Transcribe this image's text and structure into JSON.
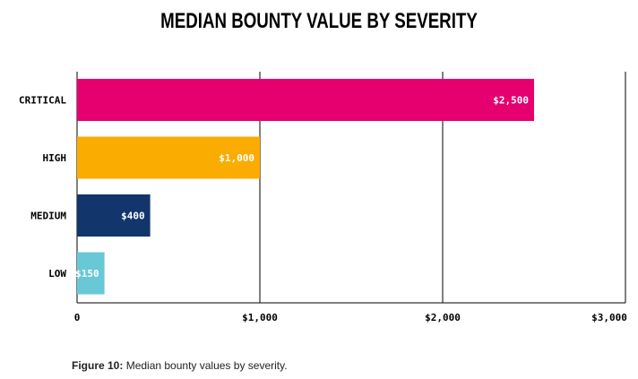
{
  "chart_data": {
    "type": "bar",
    "orientation": "horizontal",
    "title": "MEDIAN BOUNTY VALUE BY SEVERITY",
    "categories": [
      "CRITICAL",
      "HIGH",
      "MEDIUM",
      "LOW"
    ],
    "values": [
      2500,
      1000,
      400,
      150
    ],
    "value_labels": [
      "$2,500",
      "$1,000",
      "$400",
      "$150"
    ],
    "colors": [
      "#e6006f",
      "#fbac00",
      "#12356b",
      "#68c8d6"
    ],
    "xlim": [
      0,
      3000
    ],
    "x_ticks": [
      0,
      1000,
      2000,
      3000
    ],
    "x_tick_labels": [
      "0",
      "$1,000",
      "$2,000",
      "$3,000"
    ],
    "xlabel": "",
    "ylabel": "",
    "grid": "vertical"
  },
  "caption": {
    "figure": "Figure 10:",
    "text": " Median bounty values by severity."
  }
}
